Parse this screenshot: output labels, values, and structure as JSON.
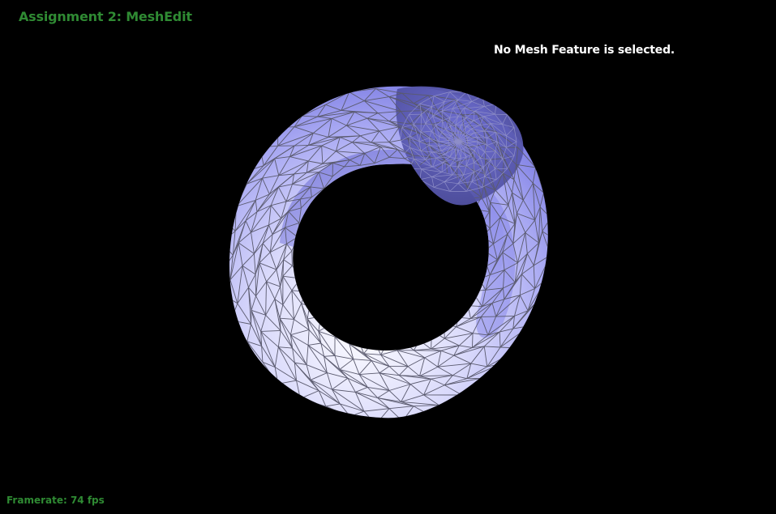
{
  "app": {
    "title": "Assignment 2: MeshEdit"
  },
  "status": {
    "message": "No Mesh Feature is selected."
  },
  "footer": {
    "framerate_label": "Framerate: 74 fps"
  },
  "viewport": {
    "object": "torus-mesh",
    "colors": {
      "background": "#000000",
      "mesh_light": "#f4f4ff",
      "mesh_mid": "#b8b8f6",
      "mesh_dark": "#7c7ce6",
      "mesh_shadow": "#3e3e78",
      "edge": "#5a5a6e"
    }
  }
}
